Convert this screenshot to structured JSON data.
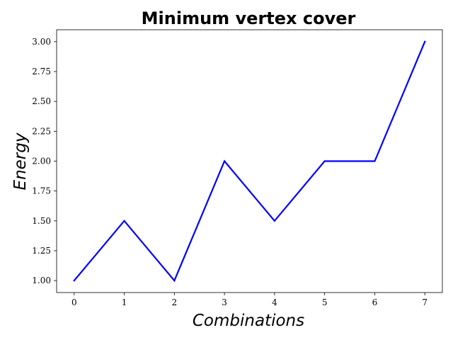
{
  "chart_data": {
    "type": "line",
    "title": "Minimum vertex cover",
    "xlabel": "Combinations",
    "ylabel": "Energy",
    "x": [
      0,
      1,
      2,
      3,
      4,
      5,
      6,
      7
    ],
    "series": [
      {
        "values": [
          1.0,
          1.5,
          1.0,
          2.0,
          1.5,
          2.0,
          2.0,
          3.0
        ],
        "color": "#0000ff"
      }
    ],
    "xlim": [
      -0.35,
      7.35
    ],
    "ylim": [
      0.9,
      3.1
    ],
    "xticks": [
      0,
      1,
      2,
      3,
      4,
      5,
      6,
      7
    ],
    "xtick_labels": [
      "0",
      "1",
      "2",
      "3",
      "4",
      "5",
      "6",
      "7"
    ],
    "yticks": [
      1.0,
      1.25,
      1.5,
      1.75,
      2.0,
      2.25,
      2.5,
      2.75,
      3.0
    ],
    "ytick_labels": [
      "1.00",
      "1.25",
      "1.50",
      "1.75",
      "2.00",
      "2.25",
      "2.50",
      "2.75",
      "3.00"
    ],
    "grid": false,
    "legend": false
  }
}
